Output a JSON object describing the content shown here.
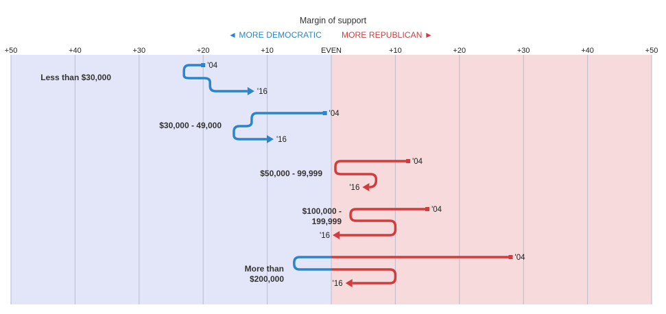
{
  "header": {
    "title": "Margin of support",
    "dem_label": "◄ MORE DEMOCRATIC",
    "rep_label": "MORE REPUBLICAN ►"
  },
  "colors": {
    "dem": "#2a86c8",
    "rep": "#d13d3d",
    "dem_bg": "#e3e6f8",
    "rep_bg": "#f7dadb",
    "grid": "#b9bccc",
    "text": "#333333"
  },
  "chart_data": {
    "type": "line",
    "title": "Margin of support",
    "x_unit": "margin (points, negative = Democratic, positive = Republican)",
    "xlim": [
      -50,
      50
    ],
    "x_ticks": [
      -50,
      -40,
      -30,
      -20,
      -10,
      0,
      10,
      20,
      30,
      40,
      50
    ],
    "x_tick_labels": [
      "+50",
      "+40",
      "+30",
      "+20",
      "+10",
      "EVEN",
      "+10",
      "+20",
      "+30",
      "+40",
      "+50"
    ],
    "start_label": "'04",
    "end_label": "'16",
    "grid": true,
    "groups": [
      {
        "label": [
          "Less than $30,000"
        ],
        "y2004": -20,
        "y2016": -12
      },
      {
        "label": [
          "$30,000 - 49,000"
        ],
        "y2004": -1,
        "y2016": -9
      },
      {
        "label": [
          "$50,000 - 99,999"
        ],
        "y2004": 12,
        "y2016": 4
      },
      {
        "label": [
          "$100,000 -",
          "199,999"
        ],
        "y2004": 15,
        "y2016": 0
      },
      {
        "label": [
          "More than",
          "$200,000"
        ],
        "y2004": 28,
        "y2016": 2
      }
    ]
  }
}
